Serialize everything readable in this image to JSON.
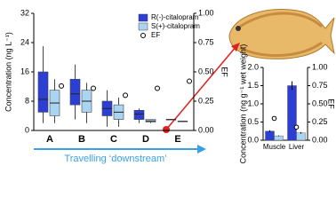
{
  "chart_data": [
    {
      "type": "box",
      "categories": [
        "A",
        "B",
        "C",
        "D",
        "E"
      ],
      "ylabel": "Concentration (ng L⁻¹)",
      "y2label": "EF",
      "xlabel": "Travelling ‘downstream’",
      "ylim": [
        0,
        32
      ],
      "yticks": [
        0,
        8,
        16,
        24,
        32
      ],
      "y2lim": [
        0,
        1
      ],
      "y2ticks": [
        {
          "value": 0,
          "label": "0.00"
        },
        {
          "value": 0.25,
          "label": "0.25"
        },
        {
          "value": 0.5,
          "label": "0.50"
        },
        {
          "value": 0.75,
          "label": "0.75"
        },
        {
          "value": 1,
          "label": "1.00"
        }
      ],
      "legend": "upper right",
      "series": [
        {
          "name": "R(-)-citalopram",
          "color": "#2b3fd4",
          "boxes": [
            {
              "min": 2,
              "q1": 5,
              "median": 8.5,
              "q3": 16,
              "max": 23
            },
            {
              "min": 3,
              "q1": 7,
              "median": 10,
              "q3": 14,
              "max": 18
            },
            {
              "min": 1,
              "q1": 4,
              "median": 6,
              "q3": 8,
              "max": 11
            },
            {
              "min": 2,
              "q1": 3,
              "median": 4.5,
              "q3": 5.5,
              "max": 6
            },
            {
              "min": 3,
              "q1": 3,
              "median": 3,
              "q3": 3,
              "max": 3
            }
          ]
        },
        {
          "name": "S(+)-citalopram",
          "color": "#a9d5f2",
          "boxes": [
            {
              "min": 2,
              "q1": 4,
              "median": 7.5,
              "q3": 11,
              "max": 14
            },
            {
              "min": 2,
              "q1": 5,
              "median": 8,
              "q3": 11,
              "max": 13
            },
            {
              "min": 1,
              "q1": 3,
              "median": 5,
              "q3": 7,
              "max": 9
            },
            {
              "min": 2,
              "q1": 2.3,
              "median": 2.6,
              "q3": 3,
              "max": 3
            },
            {
              "min": 2.5,
              "q1": 2.5,
              "median": 2.5,
              "q3": 2.5,
              "max": 2.5
            }
          ]
        },
        {
          "name": "EF",
          "axis": "y2",
          "color": "#000000",
          "values": [
            0.38,
            0.36,
            0.3,
            0.36,
            0.42
          ]
        }
      ]
    },
    {
      "type": "bar",
      "categories": [
        "Muscle",
        "Liver"
      ],
      "ylabel": "Concentration (ng g⁻¹ wet weight)",
      "y2label": "EF",
      "ylim": [
        0,
        2
      ],
      "yticks": [
        {
          "value": 0,
          "label": "0.0"
        },
        {
          "value": 0.5,
          "label": "0.5"
        },
        {
          "value": 1,
          "label": "1.0"
        },
        {
          "value": 1.5,
          "label": "1.5"
        },
        {
          "value": 2,
          "label": "2.0"
        }
      ],
      "y2lim": [
        0,
        1
      ],
      "y2ticks": [
        {
          "value": 0,
          "label": "0.00"
        },
        {
          "value": 0.25,
          "label": "0.25"
        },
        {
          "value": 0.5,
          "label": "0.50"
        },
        {
          "value": 0.75,
          "label": "0.75"
        },
        {
          "value": 1,
          "label": "1.00"
        }
      ],
      "series": [
        {
          "name": "R(-)-citalopram",
          "color": "#2b3fd4",
          "values": [
            0.25,
            1.5
          ],
          "errors": [
            0.02,
            0.12
          ]
        },
        {
          "name": "S(+)-citalopram",
          "color": "#a9d5f2",
          "values": [
            0.12,
            0.2
          ],
          "errors": [
            0.01,
            0.02
          ]
        },
        {
          "name": "EF",
          "axis": "y2",
          "color": "#000000",
          "values": [
            0.3,
            0.18
          ],
          "errors": [
            0.03,
            0.01
          ]
        }
      ]
    }
  ]
}
